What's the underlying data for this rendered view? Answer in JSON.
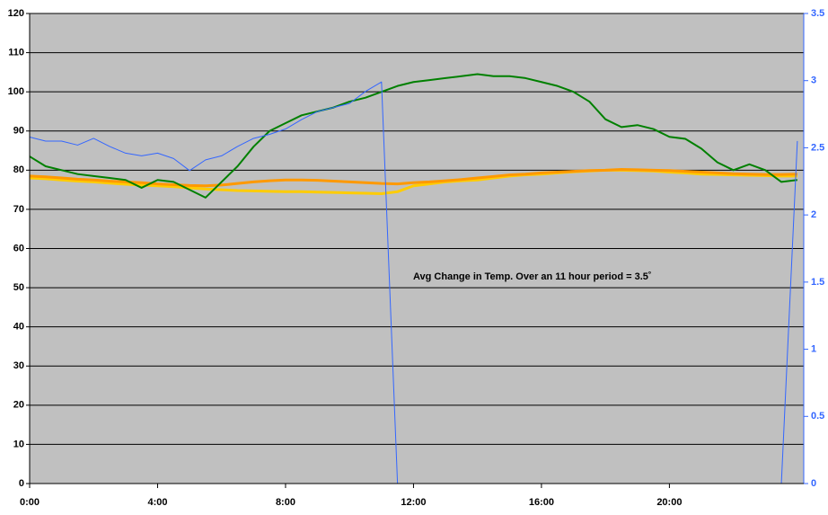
{
  "chart_data": {
    "type": "line",
    "annotation": "Avg Change in Temp. Over an 11 hour period = 3.5˚",
    "x": [
      0,
      0.5,
      1,
      1.5,
      2,
      2.5,
      3,
      3.5,
      4,
      4.5,
      5,
      5.5,
      6,
      6.5,
      7,
      7.5,
      8,
      8.5,
      9,
      9.5,
      10,
      10.5,
      11,
      11.5,
      12,
      12.5,
      13,
      13.5,
      14,
      14.5,
      15,
      15.5,
      16,
      16.5,
      17,
      17.5,
      18,
      18.5,
      19,
      19.5,
      20,
      20.5,
      21,
      21.5,
      22,
      22.5,
      23,
      23.5,
      24
    ],
    "xlim": [
      0,
      24.2
    ],
    "xticks": [
      {
        "value": 0,
        "label": "0:00"
      },
      {
        "value": 4,
        "label": "4:00"
      },
      {
        "value": 8,
        "label": "8:00"
      },
      {
        "value": 12,
        "label": "12:00"
      },
      {
        "value": 16,
        "label": "16:00"
      },
      {
        "value": 20,
        "label": "20:00"
      }
    ],
    "ylim": [
      0,
      120
    ],
    "yticks": [
      0,
      10,
      20,
      30,
      40,
      50,
      60,
      70,
      80,
      90,
      100,
      110,
      120
    ],
    "y2lim": [
      0,
      3.5
    ],
    "y2ticks": [
      0,
      0.5,
      1,
      1.5,
      2,
      2.5,
      3,
      3.5
    ],
    "grid": true,
    "background": "#c0c0c0",
    "y2color": "#3366ff",
    "series": [
      {
        "color": "#ffcc00",
        "width": 3,
        "values": [
          78,
          77.8,
          77.5,
          77.2,
          77,
          76.7,
          76.4,
          76.2,
          76,
          75.8,
          75.5,
          75.2,
          75,
          74.8,
          74.7,
          74.6,
          74.5,
          74.5,
          74.4,
          74.3,
          74.2,
          74.1,
          74,
          74.5,
          76,
          76.5,
          77,
          77.3,
          77.5,
          78,
          78.5,
          78.8,
          79,
          79.3,
          79.6,
          79.8,
          80,
          80,
          79.9,
          79.8,
          79.5,
          79.3,
          79,
          78.9,
          78.8,
          78.7,
          78.6,
          78.5,
          78.5
        ]
      },
      {
        "color": "#ff9900",
        "width": 3,
        "values": [
          78.5,
          78.3,
          78,
          77.7,
          77.5,
          77.2,
          77,
          76.8,
          76.5,
          76.3,
          76.1,
          76,
          76.2,
          76.6,
          77,
          77.3,
          77.5,
          77.5,
          77.4,
          77.2,
          77,
          76.8,
          76.6,
          76.5,
          76.8,
          77,
          77.3,
          77.6,
          78,
          78.4,
          78.8,
          79,
          79.3,
          79.5,
          79.7,
          79.9,
          80,
          80.2,
          80.1,
          80,
          79.9,
          79.7,
          79.5,
          79.3,
          79.1,
          79,
          78.9,
          78.9,
          79
        ]
      },
      {
        "color": "#008000",
        "width": 2,
        "values": [
          83.5,
          81,
          80,
          79,
          78.5,
          78,
          77.5,
          75.5,
          77.5,
          77,
          75,
          73,
          77,
          81,
          86,
          90,
          92,
          94,
          95,
          96,
          97.5,
          98.5,
          100,
          101.5,
          102.5,
          103,
          103.5,
          104,
          104.5,
          104,
          104,
          103.5,
          102.5,
          101.5,
          100,
          97.5,
          93,
          91,
          91.5,
          90.5,
          88.5,
          88,
          85.5,
          82,
          80,
          81.5,
          80,
          77,
          77.5
        ]
      },
      {
        "color": "#3366ff",
        "width": 1,
        "axis": "y2",
        "values": [
          2.58,
          2.55,
          2.55,
          2.52,
          2.57,
          2.51,
          2.46,
          2.44,
          2.46,
          2.42,
          2.33,
          2.41,
          2.44,
          2.51,
          2.57,
          2.6,
          2.64,
          2.71,
          2.77,
          2.8,
          2.83,
          2.92,
          2.99,
          0,
          0,
          0,
          0,
          0,
          0,
          0,
          0,
          0,
          0,
          0,
          0,
          0,
          0,
          0,
          0,
          0,
          0,
          0,
          0,
          0,
          0,
          0,
          0,
          0,
          2.55
        ]
      }
    ]
  }
}
